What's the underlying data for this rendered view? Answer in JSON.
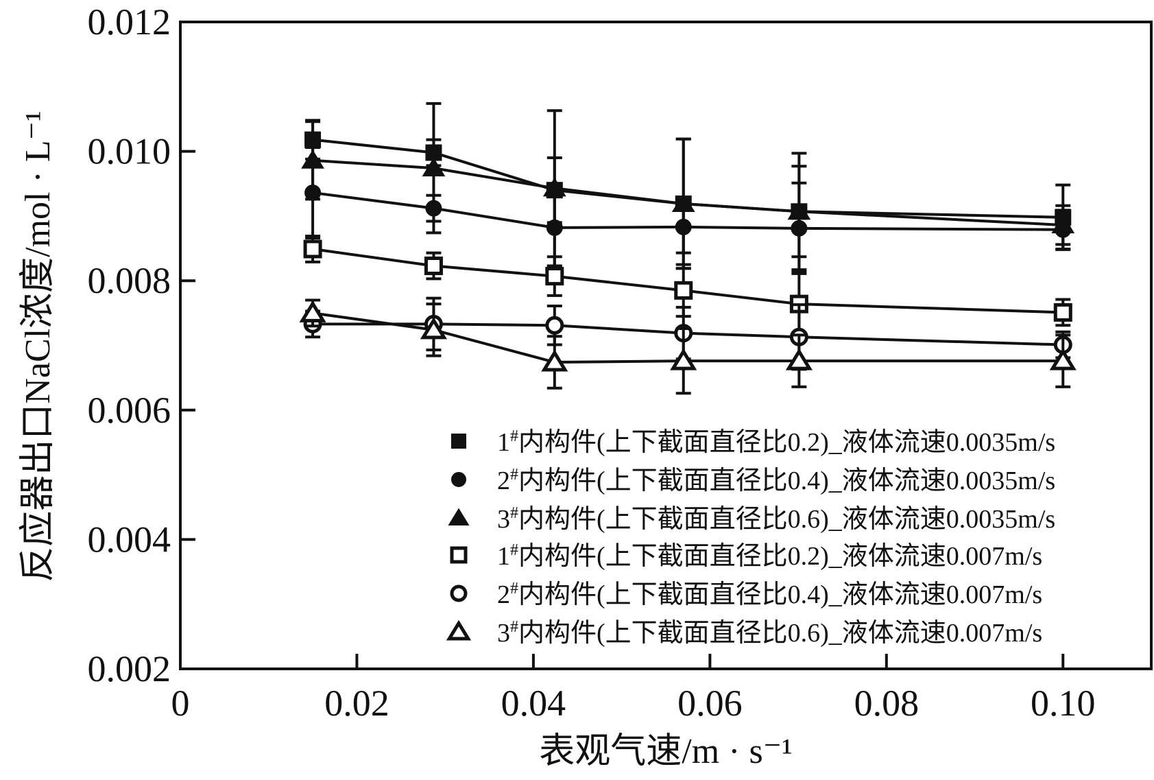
{
  "chart_data": {
    "type": "line",
    "xlabel": "表观气速/m · s⁻¹",
    "ylabel": "反应器出口NaCl浓度/mol · L⁻¹",
    "xlim": [
      0,
      0.11
    ],
    "ylim": [
      0.002,
      0.012
    ],
    "xticks": [
      0,
      0.02,
      0.04,
      0.06,
      0.08,
      0.1
    ],
    "xtick_labels": [
      "0",
      "0.02",
      "0.04",
      "0.06",
      "0.08",
      "0.10"
    ],
    "yticks": [
      0.002,
      0.004,
      0.006,
      0.008,
      0.01,
      0.012
    ],
    "ytick_labels": [
      "0.002",
      "0.004",
      "0.006",
      "0.008",
      "0.010",
      "0.012"
    ],
    "grid": false,
    "legend_position": "bottom-right",
    "color": "#111111",
    "x": [
      0.015,
      0.0287,
      0.0424,
      0.057,
      0.0701,
      0.1
    ],
    "series": [
      {
        "name": "1#内构件(上下截面直径比0.2)_液体流速0.0035m/s",
        "marker": "square-filled",
        "values": [
          0.01018,
          0.00998,
          0.0094,
          0.00919,
          0.00907,
          0.00898
        ],
        "errors": [
          0.0003,
          0.0002,
          0.0005,
          0.001,
          0.0007,
          0.0005
        ]
      },
      {
        "name": "2#内构件(上下截面直径比0.4)_液体流速0.0035m/s",
        "marker": "circle-filled",
        "values": [
          0.00936,
          0.00912,
          0.00882,
          0.00883,
          0.00881,
          0.00879
        ],
        "errors": [
          0.0007,
          0.0002,
          0.0006,
          0.0004,
          0.0007,
          0.0003
        ]
      },
      {
        "name": "3#内构件(上下截面直径比0.6)_液体流速0.0035m/s",
        "marker": "triangle-filled",
        "values": [
          0.00986,
          0.00974,
          0.00943,
          0.00919,
          0.00907,
          0.00886
        ],
        "errors": [
          0.0006,
          0.001,
          0.0012,
          0.001,
          0.0009,
          0.0003
        ]
      },
      {
        "name": "1#内构件(上下截面直径比0.2)_液体流速0.007m/s",
        "marker": "square-open",
        "values": [
          0.00849,
          0.00823,
          0.00807,
          0.00785,
          0.00764,
          0.00751
        ],
        "errors": [
          0.0002,
          0.0002,
          0.0003,
          0.0004,
          0.0005,
          0.0002
        ]
      },
      {
        "name": "2#内构件(上下截面直径比0.4)_液体流速0.007m/s",
        "marker": "circle-open",
        "values": [
          0.00733,
          0.00733,
          0.00731,
          0.00719,
          0.00713,
          0.00701
        ],
        "errors": [
          0.0002,
          0.0004,
          0.0003,
          0.0004,
          0.0005,
          0.0002
        ]
      },
      {
        "name": "3#内构件(上下截面直径比0.6)_液体流速0.007m/s",
        "marker": "triangle-open",
        "values": [
          0.0075,
          0.00724,
          0.00674,
          0.00676,
          0.00676,
          0.00676
        ],
        "errors": [
          0.0002,
          0.0004,
          0.0004,
          0.0005,
          0.0004,
          0.0004
        ]
      }
    ]
  }
}
